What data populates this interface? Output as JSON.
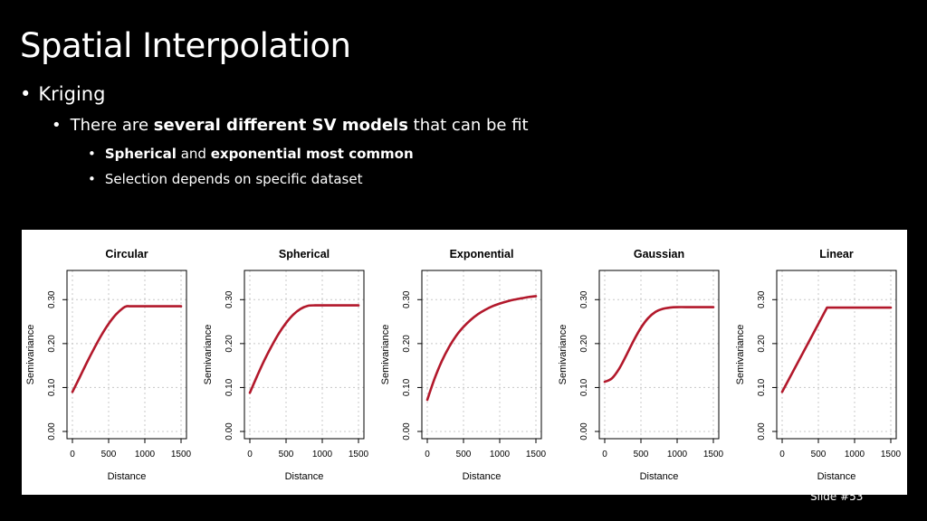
{
  "slide": {
    "title": "Spatial Interpolation",
    "bullet1": "Kriging",
    "bullet2": {
      "pre": "There are ",
      "bold": "several different SV models",
      "post": " that can be fit"
    },
    "bullet3": {
      "bold1": "Spherical",
      "mid": " and ",
      "bold2": "exponential most common"
    },
    "bullet4": "Selection depends on specific dataset",
    "slide_number": "Slide #53",
    "bullet_char": "•"
  },
  "colors": {
    "background": "#000000",
    "text": "#ffffff",
    "curve": "#b2182b",
    "grid": "#c8c8c8"
  },
  "chart_data": [
    {
      "type": "line",
      "title": "Circular",
      "xlabel": "Distance",
      "ylabel": "Semivariance",
      "xlim": [
        0,
        1500
      ],
      "ylim": [
        0,
        0.35
      ],
      "grid": true,
      "xticks": [
        0,
        500,
        1000,
        1500
      ],
      "xtick_labels": [
        "0",
        "500",
        "1000",
        "1500"
      ],
      "yticks": [
        0,
        0.1,
        0.2,
        0.3
      ],
      "ytick_labels": [
        "0.00",
        "0.10",
        "0.20",
        "0.30"
      ],
      "x": [
        0,
        100,
        200,
        300,
        400,
        500,
        600,
        700,
        750,
        800,
        1000,
        1200,
        1500
      ],
      "y": [
        0.09,
        0.123,
        0.157,
        0.189,
        0.219,
        0.245,
        0.266,
        0.281,
        0.285,
        0.285,
        0.285,
        0.285,
        0.285
      ]
    },
    {
      "type": "line",
      "title": "Spherical",
      "xlabel": "Distance",
      "ylabel": "Semivariance",
      "xlim": [
        0,
        1500
      ],
      "ylim": [
        0,
        0.35
      ],
      "grid": true,
      "xticks": [
        0,
        500,
        1000,
        1500
      ],
      "xtick_labels": [
        "0",
        "500",
        "1000",
        "1500"
      ],
      "yticks": [
        0,
        0.1,
        0.2,
        0.3
      ],
      "ytick_labels": [
        "0.00",
        "0.10",
        "0.20",
        "0.30"
      ],
      "x": [
        0,
        100,
        200,
        300,
        400,
        500,
        600,
        700,
        800,
        900,
        1000,
        1200,
        1500
      ],
      "y": [
        0.088,
        0.126,
        0.162,
        0.194,
        0.223,
        0.247,
        0.266,
        0.279,
        0.286,
        0.287,
        0.287,
        0.287,
        0.287
      ]
    },
    {
      "type": "line",
      "title": "Exponential",
      "xlabel": "Distance",
      "ylabel": "Semivariance",
      "xlim": [
        0,
        1500
      ],
      "ylim": [
        0,
        0.35
      ],
      "grid": true,
      "xticks": [
        0,
        500,
        1000,
        1500
      ],
      "xtick_labels": [
        "0",
        "500",
        "1000",
        "1500"
      ],
      "yticks": [
        0,
        0.1,
        0.2,
        0.3
      ],
      "ytick_labels": [
        "0.00",
        "0.10",
        "0.20",
        "0.30"
      ],
      "x": [
        0,
        100,
        200,
        300,
        400,
        500,
        600,
        700,
        800,
        900,
        1000,
        1100,
        1200,
        1300,
        1400,
        1500
      ],
      "y": [
        0.072,
        0.12,
        0.16,
        0.192,
        0.218,
        0.238,
        0.254,
        0.267,
        0.277,
        0.285,
        0.291,
        0.296,
        0.3,
        0.303,
        0.306,
        0.308
      ]
    },
    {
      "type": "line",
      "title": "Gaussian",
      "xlabel": "Distance",
      "ylabel": "Semivariance",
      "xlim": [
        0,
        1500
      ],
      "ylim": [
        0,
        0.35
      ],
      "grid": true,
      "xticks": [
        0,
        500,
        1000,
        1500
      ],
      "xtick_labels": [
        "0",
        "500",
        "1000",
        "1500"
      ],
      "yticks": [
        0,
        0.1,
        0.2,
        0.3
      ],
      "ytick_labels": [
        "0.00",
        "0.10",
        "0.20",
        "0.30"
      ],
      "x": [
        0,
        100,
        200,
        300,
        400,
        500,
        600,
        700,
        800,
        900,
        1000,
        1200,
        1500
      ],
      "y": [
        0.113,
        0.121,
        0.143,
        0.174,
        0.207,
        0.236,
        0.258,
        0.272,
        0.279,
        0.282,
        0.283,
        0.283,
        0.283
      ]
    },
    {
      "type": "line",
      "title": "Linear",
      "xlabel": "Distance",
      "ylabel": "Semivariance",
      "xlim": [
        0,
        1500
      ],
      "ylim": [
        0,
        0.35
      ],
      "grid": true,
      "xticks": [
        0,
        500,
        1000,
        1500
      ],
      "xtick_labels": [
        "0",
        "500",
        "1000",
        "1500"
      ],
      "yticks": [
        0,
        0.1,
        0.2,
        0.3
      ],
      "ytick_labels": [
        "0.00",
        "0.10",
        "0.20",
        "0.30"
      ],
      "x": [
        0,
        620,
        800,
        1000,
        1200,
        1500
      ],
      "y": [
        0.09,
        0.282,
        0.282,
        0.282,
        0.282,
        0.282
      ]
    }
  ]
}
